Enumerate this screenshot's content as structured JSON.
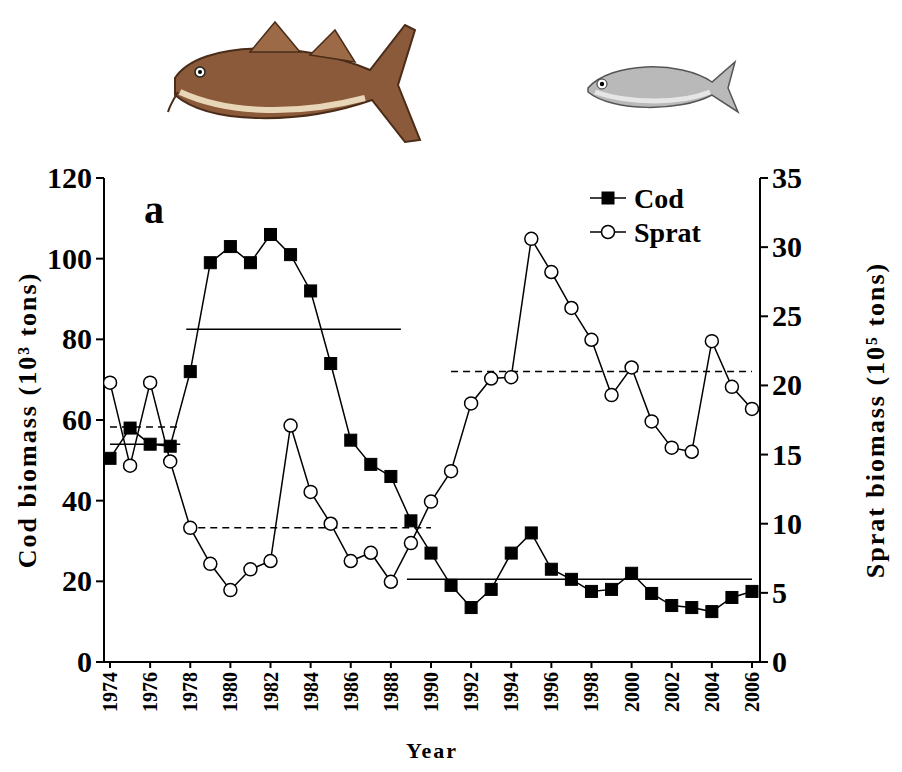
{
  "chart_data": {
    "type": "line",
    "panel_label": "a",
    "xlabel": "Year",
    "ylabel": "Cod biomass (10³ tons)",
    "y2label": "Sprat biomass (10⁵ tons)",
    "legend": "top-right",
    "x": [
      1974,
      1975,
      1976,
      1977,
      1978,
      1979,
      1980,
      1981,
      1982,
      1983,
      1984,
      1985,
      1986,
      1987,
      1988,
      1989,
      1990,
      1991,
      1992,
      1993,
      1994,
      1995,
      1996,
      1997,
      1998,
      1999,
      2000,
      2001,
      2002,
      2003,
      2004,
      2005,
      2006
    ],
    "xlim": [
      1973.7,
      2006.4
    ],
    "xticks": [
      1974,
      1976,
      1978,
      1980,
      1982,
      1984,
      1986,
      1988,
      1990,
      1992,
      1994,
      1996,
      1998,
      2000,
      2002,
      2004,
      2006
    ],
    "ylim": [
      0,
      120
    ],
    "yticks": [
      0,
      20,
      40,
      60,
      80,
      100,
      120
    ],
    "y2lim": [
      0,
      35
    ],
    "y2ticks": [
      0,
      5,
      10,
      15,
      20,
      25,
      30,
      35
    ],
    "series": [
      {
        "name": "Cod",
        "color": "#000000",
        "marker": "square",
        "line_style": "solid",
        "axis": "y",
        "values": [
          50.5,
          58,
          54,
          53.5,
          72,
          99,
          103,
          99,
          106,
          101,
          92,
          74,
          55,
          49,
          46,
          35,
          27,
          19,
          13.5,
          18,
          27,
          32,
          23,
          20.5,
          17.5,
          18,
          22,
          17,
          14,
          13.5,
          12.5,
          16,
          17.5
        ]
      },
      {
        "name": "Sprat",
        "color": "#000000",
        "marker": "circle",
        "line_style": "solid",
        "axis": "y2",
        "values": [
          20.2,
          14.2,
          20.2,
          14.5,
          9.7,
          7.1,
          5.2,
          6.7,
          7.3,
          17.1,
          12.3,
          10.0,
          7.3,
          7.9,
          5.8,
          8.6,
          11.6,
          13.8,
          18.7,
          20.5,
          20.6,
          30.6,
          28.2,
          25.6,
          23.3,
          19.3,
          21.3,
          17.4,
          15.5,
          15.2,
          23.2,
          19.9,
          18.3
        ]
      }
    ],
    "regime_means": [
      {
        "axis": "y",
        "line_style": "solid",
        "x": [
          1974,
          1977.5
        ],
        "values": [
          54,
          54
        ]
      },
      {
        "axis": "y",
        "line_style": "solid",
        "x": [
          1977.8,
          1988.5
        ],
        "values": [
          82.5,
          82.5
        ]
      },
      {
        "axis": "y",
        "line_style": "solid",
        "x": [
          1988.8,
          2006
        ],
        "values": [
          20.5,
          20.5
        ]
      },
      {
        "axis": "y2",
        "line_style": "dashed",
        "x": [
          1974,
          1977.5
        ],
        "values": [
          17,
          17
        ]
      },
      {
        "axis": "y2",
        "line_style": "dashed",
        "x": [
          1977.8,
          1990
        ],
        "values": [
          9.7,
          9.7
        ]
      },
      {
        "axis": "y2",
        "line_style": "dashed",
        "x": [
          1991,
          2006
        ],
        "values": [
          21,
          21
        ]
      }
    ]
  }
}
